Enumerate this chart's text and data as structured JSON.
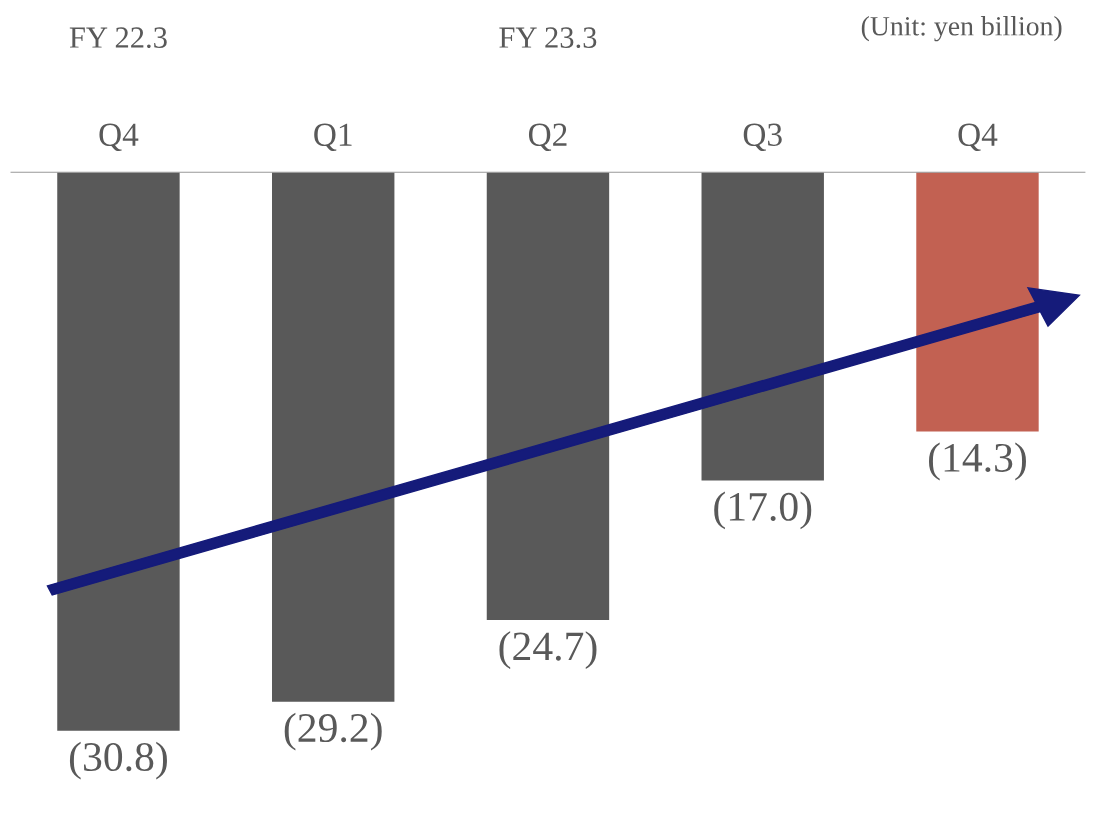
{
  "chart_data": {
    "type": "bar",
    "categories": [
      "Q4",
      "Q1",
      "Q2",
      "Q3",
      "Q4"
    ],
    "values": [
      -30.8,
      -29.2,
      -24.7,
      -17.0,
      -14.3
    ],
    "colors": [
      "#595959",
      "#595959",
      "#595959",
      "#595959",
      "#c26152"
    ],
    "value_labels": [
      "(30.8)",
      "(29.2)",
      "(24.7)",
      "(17.0)",
      "(14.3)"
    ],
    "annotations": [
      "(Unit: yen billion)",
      "FY 22.3",
      "FY 23.3"
    ],
    "grid": false,
    "legend": false
  }
}
